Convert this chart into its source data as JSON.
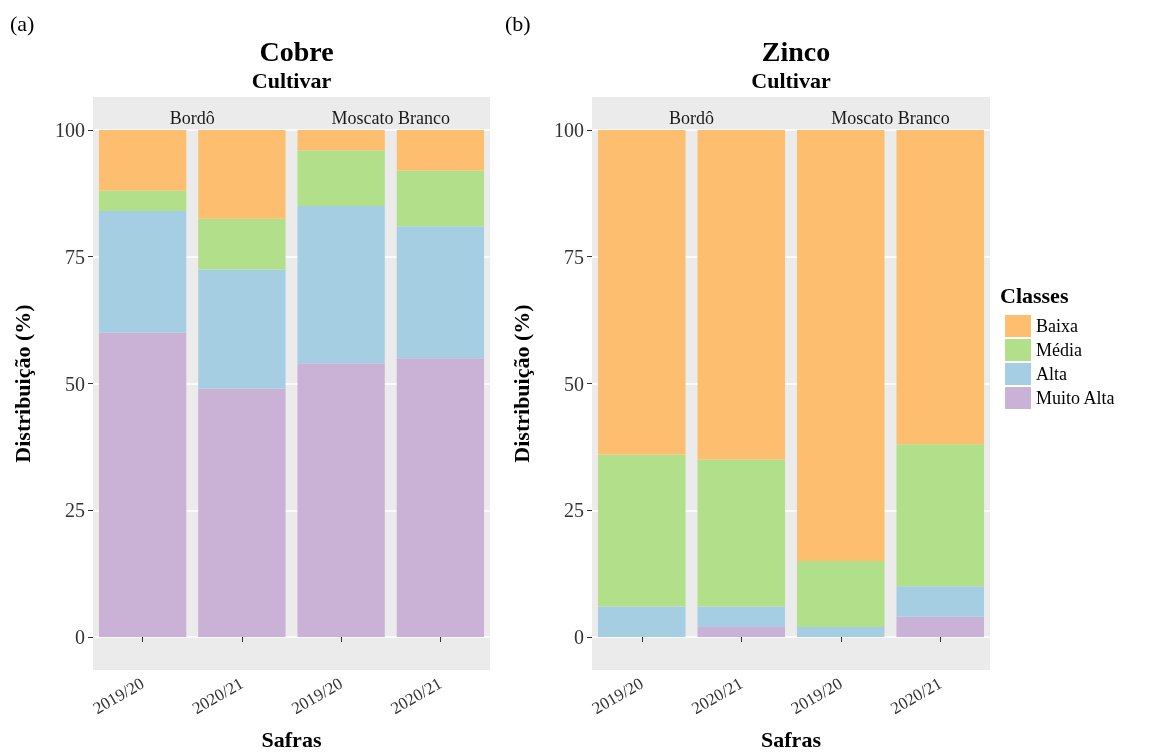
{
  "chart_data": [
    {
      "type": "bar",
      "title": "Cobre",
      "xlabel": "Safras",
      "ylabel": "Distribuição (%)",
      "annotations": [
        "(a)",
        "Cultivar",
        "Bordô",
        "Moscato Branco"
      ],
      "categories": [
        "2019/20",
        "2020/21",
        "2019/20",
        "2020/21"
      ],
      "stacked": true,
      "series": [
        {
          "color": "#cab2d6",
          "values": [
            60,
            49,
            54,
            55
          ]
        },
        {
          "color": "#a6cee3",
          "values": [
            24,
            23.5,
            31,
            26
          ]
        },
        {
          "color": "#b2df8a",
          "values": [
            4,
            10,
            11,
            11
          ]
        },
        {
          "color": "#fdbf6f",
          "values": [
            12,
            17.5,
            4,
            8
          ]
        }
      ],
      "ylim": [
        -6.5,
        106.5
      ],
      "yticks": [
        0,
        25,
        50,
        75,
        100
      ],
      "grid": "y",
      "legend": false
    },
    {
      "type": "bar",
      "title": "Zinco",
      "xlabel": "Safras",
      "ylabel": "Distribuição (%)",
      "legend_title": "Classes",
      "annotations": [
        "(b)",
        "Cultivar",
        "Bordô",
        "Moscato Branco"
      ],
      "categories": [
        "2019/20",
        "2020/21",
        "2019/20",
        "2020/21"
      ],
      "stacked": true,
      "series": [
        {
          "name": "Muito Alta",
          "color": "#cab2d6",
          "values": [
            0,
            2,
            0,
            4
          ]
        },
        {
          "name": "Alta",
          "color": "#a6cee3",
          "values": [
            6,
            4,
            2,
            6
          ]
        },
        {
          "name": "Média",
          "color": "#b2df8a",
          "values": [
            30,
            29,
            13,
            28
          ]
        },
        {
          "name": "Baixa",
          "color": "#fdbf6f",
          "values": [
            64,
            65,
            85,
            62
          ]
        }
      ],
      "ylim": [
        -6.5,
        106.5
      ],
      "yticks": [
        0,
        25,
        50,
        75,
        100
      ],
      "grid": "y",
      "legend": "right"
    }
  ]
}
